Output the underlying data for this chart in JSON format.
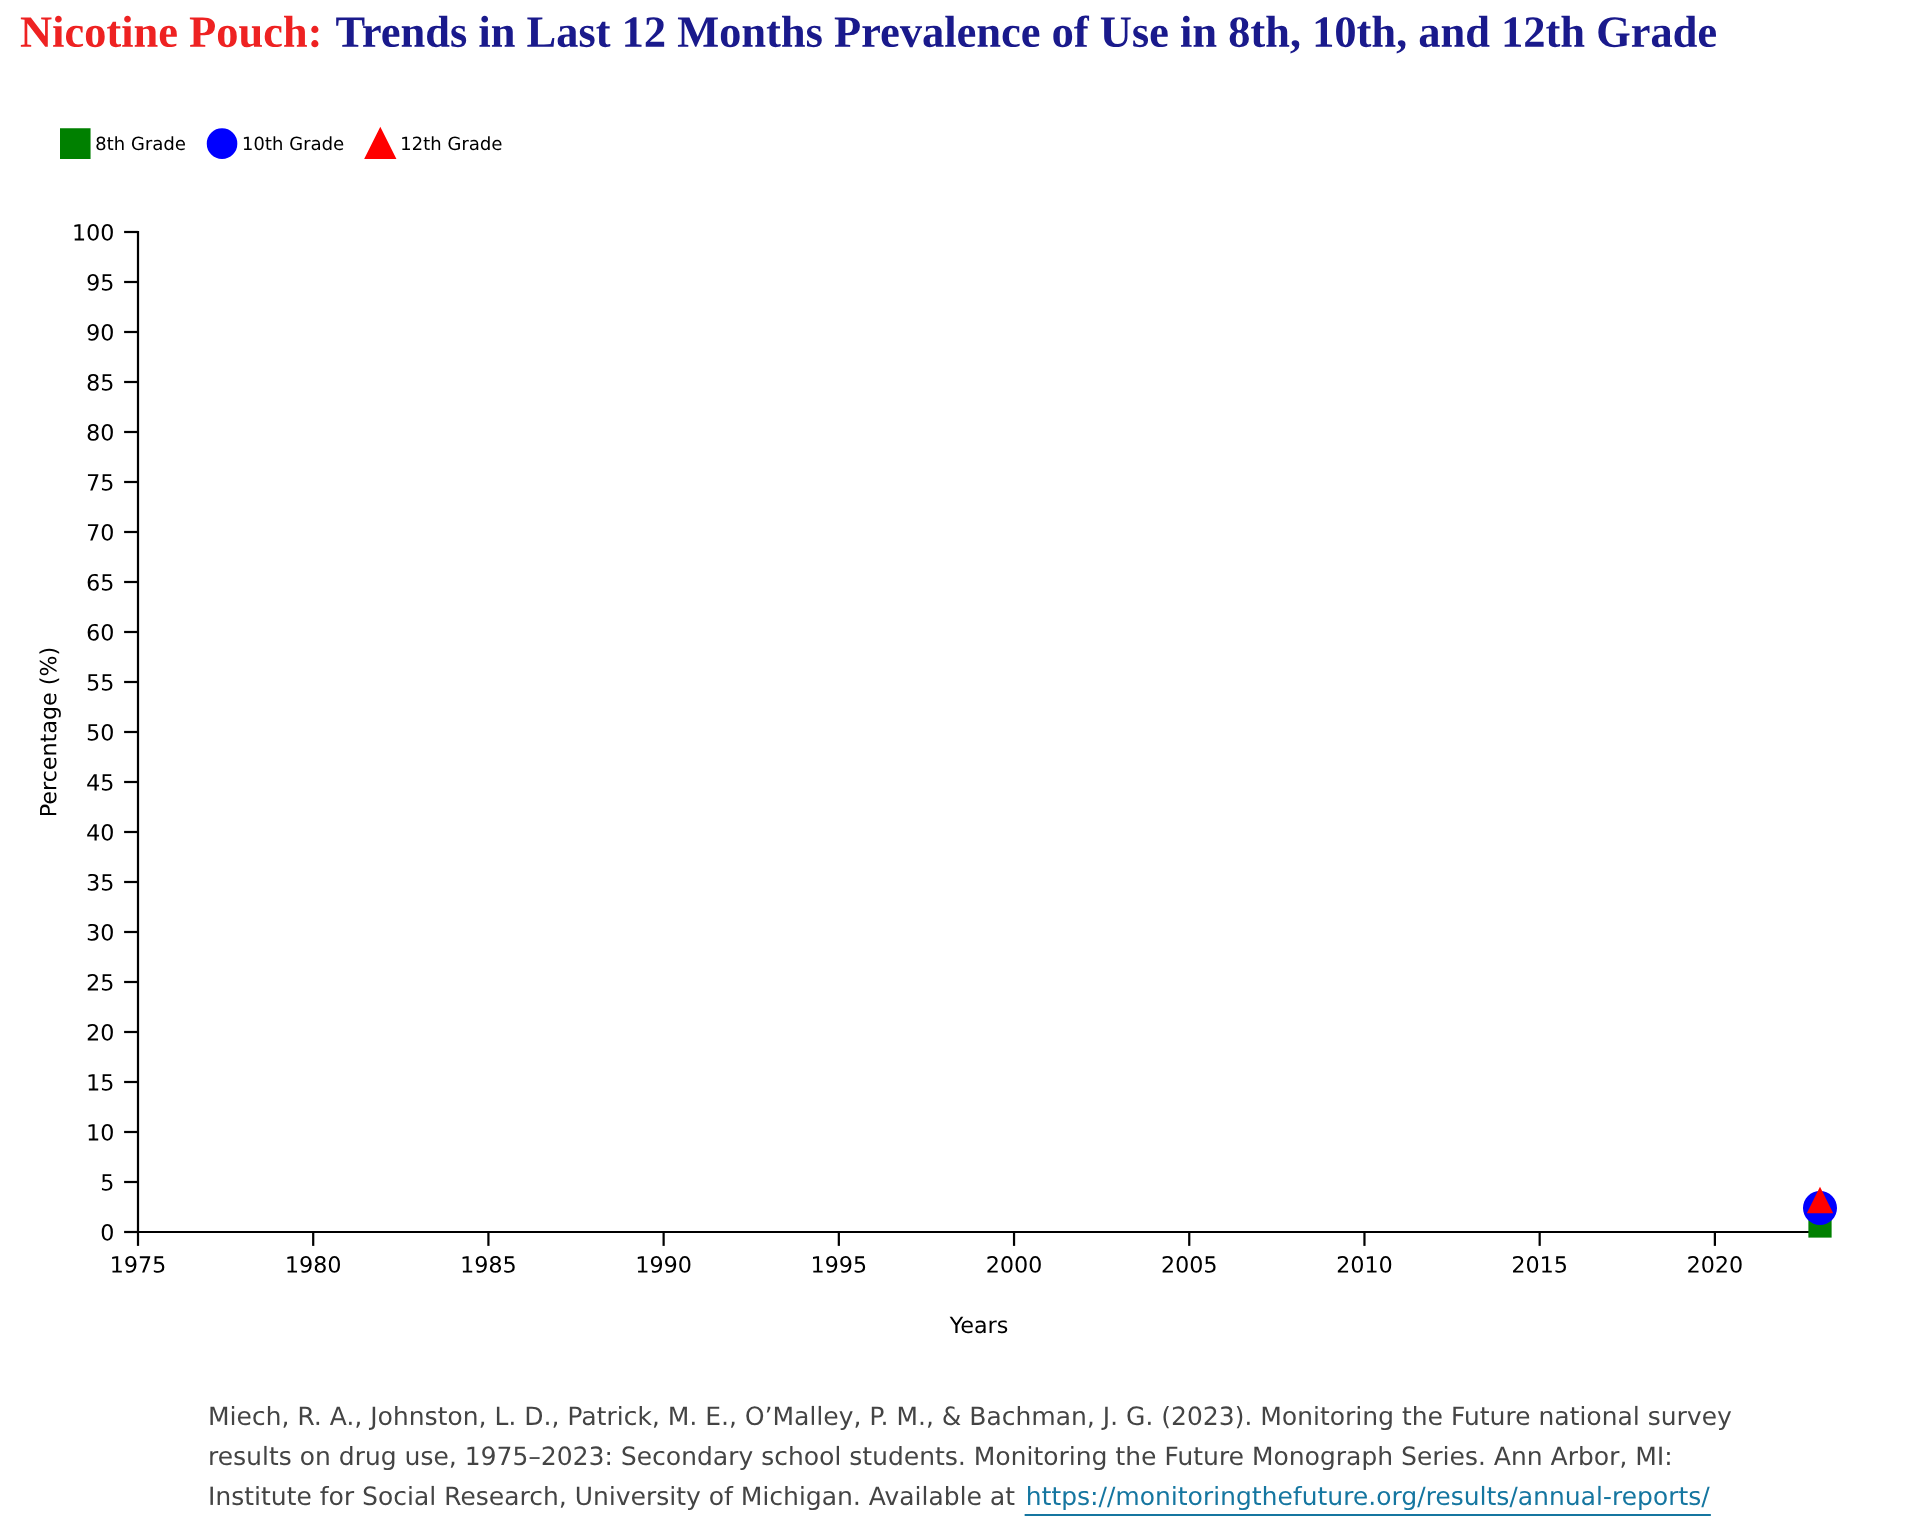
{
  "chart_data": {
    "type": "scatter",
    "title": "Nicotine Pouch:",
    "subtitle": "Trends in Last 12 Months Prevalence of Use in 8th, 10th, and 12th Grade",
    "xlabel": "Years",
    "ylabel": "Percentage (%)",
    "x": [
      2023
    ],
    "series": [
      {
        "name": "8th Grade",
        "color": "#008000",
        "marker": "square",
        "values": [
          0.6
        ]
      },
      {
        "name": "10th Grade",
        "color": "#0000ff",
        "marker": "circle",
        "values": [
          2.4
        ]
      },
      {
        "name": "12th Grade",
        "color": "#ff0000",
        "marker": "triangle",
        "values": [
          3.2
        ]
      }
    ],
    "xlim": [
      1975,
      2023
    ],
    "xticks": [
      1975,
      1980,
      1985,
      1990,
      1995,
      2000,
      2005,
      2010,
      2015,
      2020
    ],
    "ylim": [
      0,
      100
    ],
    "yticks": [
      0,
      5,
      10,
      15,
      20,
      25,
      30,
      35,
      40,
      45,
      50,
      55,
      60,
      65,
      70,
      75,
      80,
      85,
      90,
      95,
      100
    ],
    "grid": false,
    "legend": "top left",
    "annotations": [
      "Miech, R. A., Johnston, L. D., Patrick, M. E., O’Malley, P. M., & Bachman, J. G. (2023). Monitoring the Future national survey",
      "results on drug use, 1975–2023: Secondary school students. Monitoring the Future Monograph Series. Ann Arbor, MI:",
      "Institute for Social Research, University of Michigan. Available at",
      "https://monitoringthefuture.org/results/annual-reports/"
    ]
  }
}
